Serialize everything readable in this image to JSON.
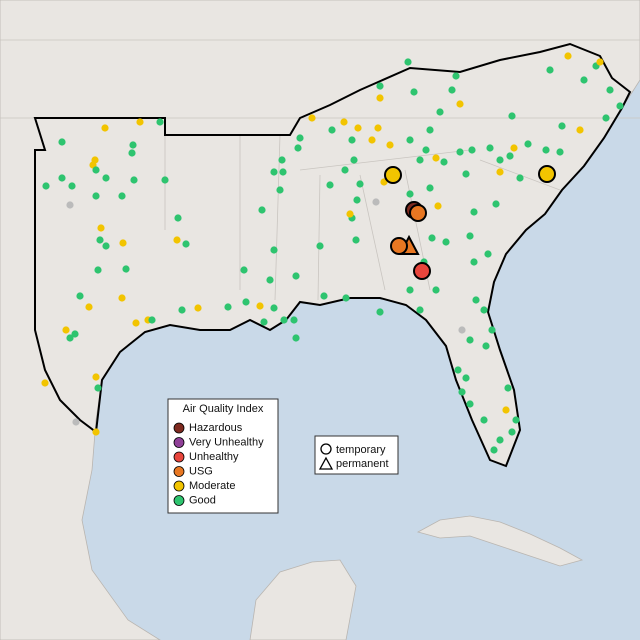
{
  "legend": {
    "title": "Air Quality Index",
    "items": [
      {
        "label": "Hazardous",
        "color": "#7e2a1f"
      },
      {
        "label": "Very Unhealthy",
        "color": "#8f3f97"
      },
      {
        "label": "Unhealthy",
        "color": "#e8453c"
      },
      {
        "label": "USG",
        "color": "#e87722"
      },
      {
        "label": "Moderate",
        "color": "#f2c400"
      },
      {
        "label": "Good",
        "color": "#2ec46f"
      }
    ]
  },
  "shape_legend": {
    "items": [
      "temporary",
      "permanent"
    ]
  }
}
